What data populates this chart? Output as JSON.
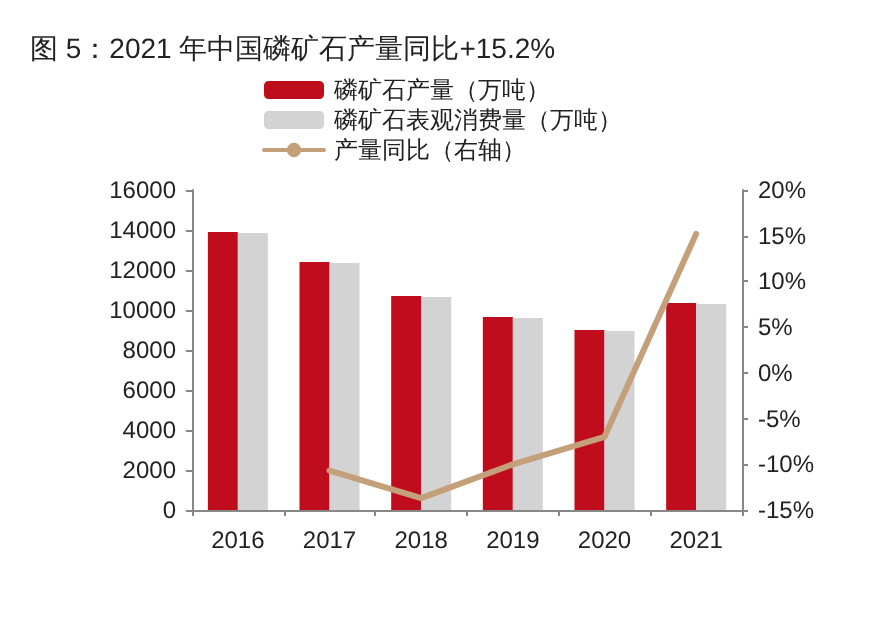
{
  "chart_data": {
    "type": "bar",
    "title": "图 5：2021 年中国磷矿石产量同比+15.2%",
    "categories": [
      "2016",
      "2017",
      "2018",
      "2019",
      "2020",
      "2021"
    ],
    "series": [
      {
        "name": "磷矿石产量（万吨）",
        "color": "#c00d1e",
        "values": [
          13900,
          12400,
          10700,
          9650,
          9000,
          10350
        ]
      },
      {
        "name": "磷矿石表观消费量（万吨）",
        "color": "#d3d3d3",
        "values": [
          13850,
          12350,
          10650,
          9600,
          8950,
          10300
        ]
      },
      {
        "name": "产量同比（右轴）",
        "type": "line",
        "axis": "y2",
        "color": "#c4a07a",
        "values": [
          null,
          -10.7,
          -13.7,
          -10.0,
          -7.0,
          15.2
        ]
      }
    ],
    "ylim": [
      0,
      16000
    ],
    "yticks": [
      0,
      2000,
      4000,
      6000,
      8000,
      10000,
      12000,
      14000,
      16000
    ],
    "y2lim": [
      -15,
      20
    ],
    "y2ticks": [
      {
        "value": -15,
        "label": "-15%"
      },
      {
        "value": -10,
        "label": "-10%"
      },
      {
        "value": -5,
        "label": "-5%"
      },
      {
        "value": 0,
        "label": "0%"
      },
      {
        "value": 5,
        "label": "5%"
      },
      {
        "value": 10,
        "label": "10%"
      },
      {
        "value": 15,
        "label": "15%"
      },
      {
        "value": 20,
        "label": "20%"
      }
    ],
    "grid": false,
    "legend": "top left",
    "marker": "none",
    "line_style": "solid"
  }
}
